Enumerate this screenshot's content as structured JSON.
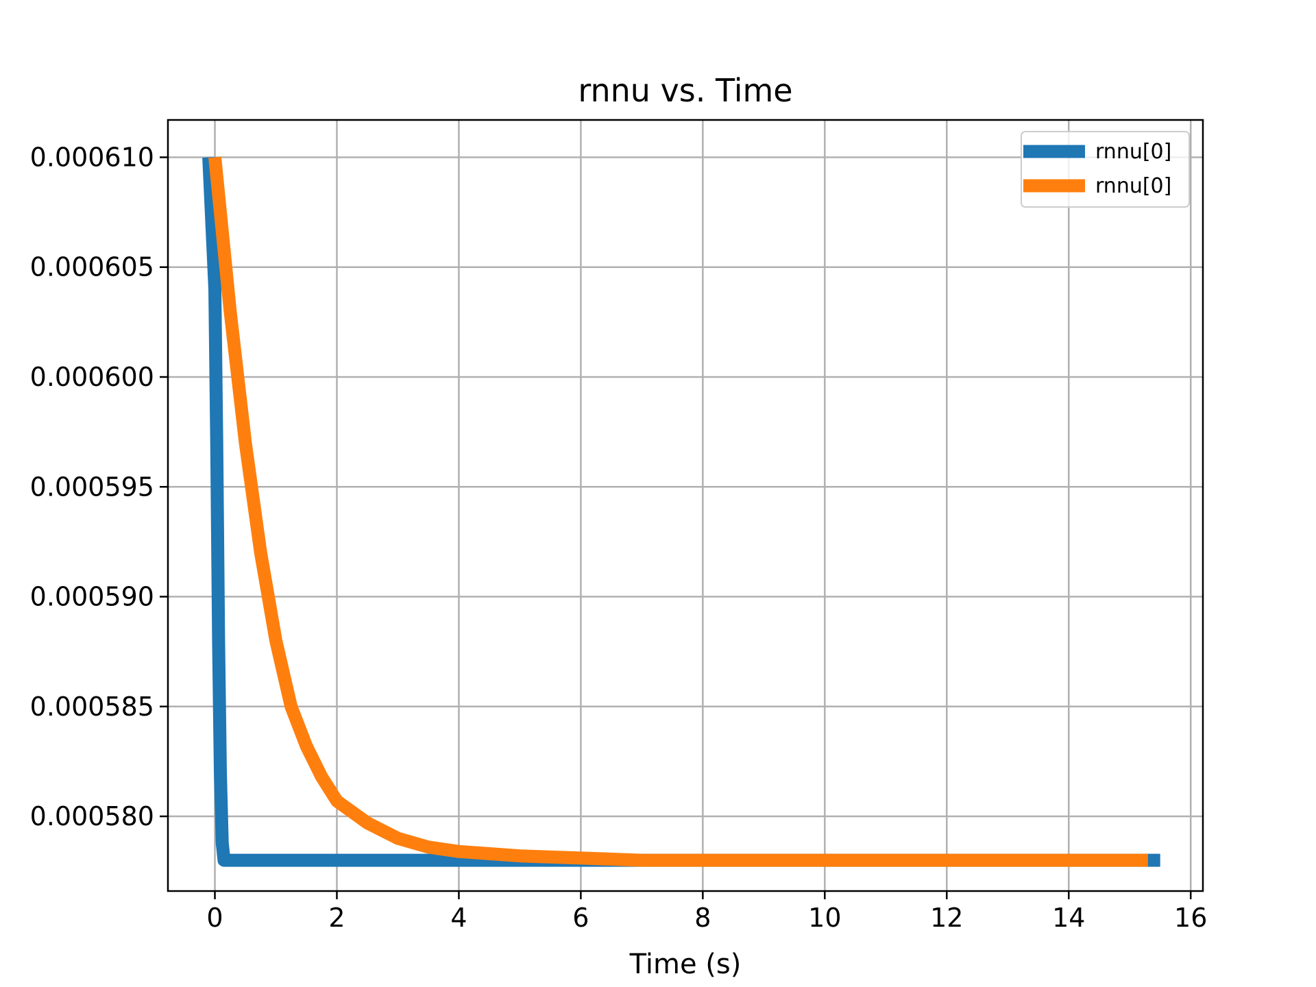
{
  "chart_data": {
    "type": "line",
    "title": "rnnu vs. Time",
    "xlabel": "Time (s)",
    "ylabel": "",
    "xlim": [
      -0.77,
      16.2
    ],
    "ylim": [
      0.0005766,
      0.0006117
    ],
    "x_ticks": [
      0,
      2,
      4,
      6,
      8,
      10,
      12,
      14,
      16
    ],
    "x_tick_labels": [
      "0",
      "2",
      "4",
      "6",
      "8",
      "10",
      "12",
      "14",
      "16"
    ],
    "y_ticks": [
      0.00058,
      0.000585,
      0.00059,
      0.000595,
      0.0006,
      0.000605,
      0.00061
    ],
    "y_tick_labels": [
      "0.000580",
      "0.000585",
      "0.000590",
      "0.000595",
      "0.000600",
      "0.000605",
      "0.000610"
    ],
    "grid": true,
    "legend_position": "top-right",
    "series": [
      {
        "name": "rnnu[0]",
        "color": "#1f77b4",
        "x": [
          -0.1,
          0.0,
          0.03,
          0.06,
          0.09,
          0.12,
          0.15,
          0.2,
          0.5,
          1.0,
          2.0,
          4.0,
          6.0,
          8.0,
          10.0,
          12.0,
          14.0,
          15.5
        ],
        "y": [
          0.00061,
          0.000604,
          0.000597,
          0.000588,
          0.000582,
          0.0005788,
          0.000578,
          0.000578,
          0.000578,
          0.000578,
          0.000578,
          0.000578,
          0.000578,
          0.000578,
          0.000578,
          0.000578,
          0.000578,
          0.000578
        ]
      },
      {
        "name": "rnnu[0]",
        "color": "#ff7f0e",
        "x": [
          0.0,
          0.25,
          0.5,
          0.75,
          1.0,
          1.25,
          1.5,
          1.75,
          2.0,
          2.5,
          3.0,
          3.5,
          4.0,
          4.5,
          5.0,
          6.0,
          7.0,
          8.0,
          10.0,
          12.0,
          14.0,
          15.3
        ],
        "y": [
          0.00061,
          0.000603,
          0.000597,
          0.000592,
          0.000588,
          0.000585,
          0.0005832,
          0.0005818,
          0.0005807,
          0.0005797,
          0.000579,
          0.0005786,
          0.0005784,
          0.0005783,
          0.0005782,
          0.0005781,
          0.000578,
          0.000578,
          0.000578,
          0.000578,
          0.000578,
          0.000578
        ]
      }
    ]
  }
}
